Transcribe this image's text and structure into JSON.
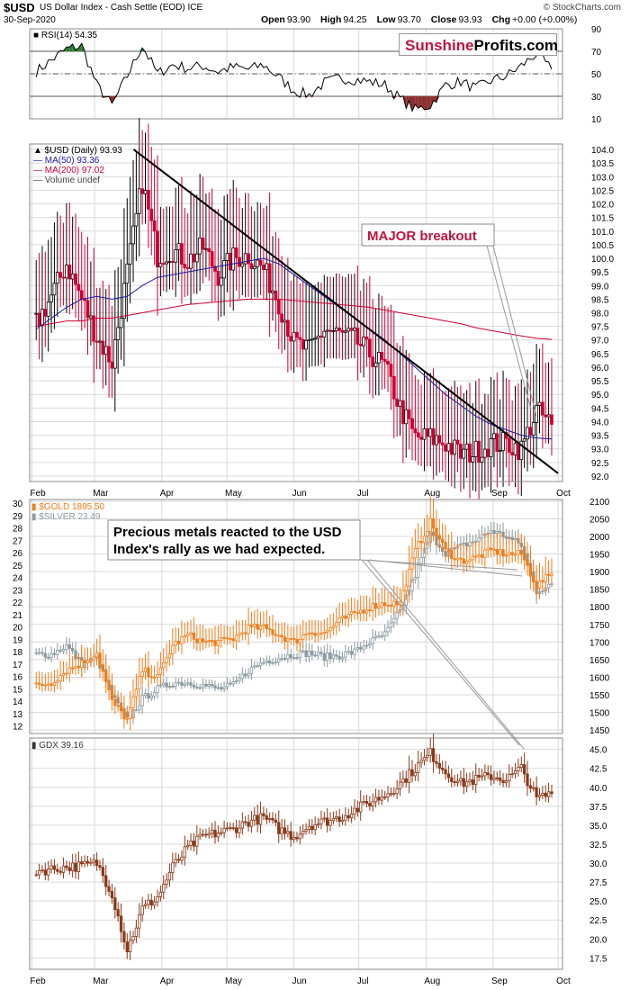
{
  "header": {
    "symbol": "$USD",
    "description": "US Dollar Index - Cash Settle (EOD) ICE",
    "date": "30-Sep-2020",
    "brand": "© StockCharts.com",
    "open_label": "Open",
    "open": "93.90",
    "high_label": "High",
    "high": "94.25",
    "low_label": "Low",
    "low": "93.70",
    "close_label": "Close",
    "close": "93.93",
    "chg_label": "Chg",
    "chg": "+0.00 (+0.00%)"
  },
  "logo": {
    "part1": "Sunshine",
    "part2": "Profits.com"
  },
  "colors": {
    "up": "#000000",
    "down": "#cc0033",
    "ma50": "#1a1aa0",
    "ma200": "#cc0033",
    "gold": "#f07d1a",
    "silver": "#8a9aa0",
    "gdx": "#8b3a1a",
    "rsi_over": "#2e7d32",
    "rsi_under": "#8b3030",
    "trend": "#000000"
  },
  "x_months": [
    "Feb",
    "Mar",
    "Apr",
    "May",
    "Jun",
    "Jul",
    "Aug",
    "Sep",
    "Oct"
  ],
  "chart_data": [
    {
      "type": "line",
      "title": "RSI(14) 54.35",
      "legend": [
        "RSI(14) 54.35"
      ],
      "y_ticks": [
        90,
        70,
        50,
        30,
        10
      ],
      "ylim": [
        10,
        90
      ],
      "levels": [
        70,
        50,
        30
      ],
      "x": [
        "2020-02-03",
        "2020-02-10",
        "2020-02-17",
        "2020-02-24",
        "2020-03-02",
        "2020-03-09",
        "2020-03-16",
        "2020-03-23",
        "2020-03-30",
        "2020-04-06",
        "2020-04-13",
        "2020-04-20",
        "2020-04-27",
        "2020-05-04",
        "2020-05-11",
        "2020-05-18",
        "2020-05-25",
        "2020-06-01",
        "2020-06-08",
        "2020-06-15",
        "2020-06-22",
        "2020-06-29",
        "2020-07-06",
        "2020-07-13",
        "2020-07-20",
        "2020-07-27",
        "2020-08-03",
        "2020-08-10",
        "2020-08-17",
        "2020-08-24",
        "2020-08-31",
        "2020-09-07",
        "2020-09-14",
        "2020-09-21",
        "2020-09-28"
      ],
      "values": [
        52,
        62,
        72,
        75,
        40,
        22,
        48,
        75,
        50,
        58,
        55,
        57,
        52,
        56,
        54,
        58,
        47,
        35,
        31,
        42,
        46,
        45,
        43,
        40,
        28,
        18,
        22,
        40,
        43,
        37,
        44,
        48,
        57,
        68,
        54
      ]
    },
    {
      "type": "candlestick",
      "title": "$USD (Daily) 93.93",
      "legend": [
        "$USD (Daily) 93.93",
        "MA(50) 93.36",
        "MA(200) 97.02",
        "Volume undef"
      ],
      "y_ticks": [
        104.0,
        103.5,
        103.0,
        102.5,
        102.0,
        101.5,
        101.0,
        100.5,
        100.0,
        99.5,
        99.0,
        98.5,
        98.0,
        97.5,
        97.0,
        96.5,
        96.0,
        95.5,
        95.0,
        94.5,
        94.0,
        93.5,
        93.0,
        92.5,
        92.0
      ],
      "ylim": [
        91.8,
        104.2
      ],
      "x": [
        "2020-02-03",
        "2020-02-10",
        "2020-02-17",
        "2020-02-24",
        "2020-03-02",
        "2020-03-09",
        "2020-03-16",
        "2020-03-23",
        "2020-03-30",
        "2020-04-06",
        "2020-04-13",
        "2020-04-20",
        "2020-04-27",
        "2020-05-04",
        "2020-05-11",
        "2020-05-18",
        "2020-05-25",
        "2020-06-01",
        "2020-06-08",
        "2020-06-15",
        "2020-06-22",
        "2020-06-29",
        "2020-07-06",
        "2020-07-13",
        "2020-07-20",
        "2020-07-27",
        "2020-08-03",
        "2020-08-10",
        "2020-08-17",
        "2020-08-24",
        "2020-08-31",
        "2020-09-07",
        "2020-09-14",
        "2020-09-21",
        "2020-09-28"
      ],
      "values": [
        97.6,
        98.6,
        99.8,
        98.5,
        97.1,
        96.2,
        99.5,
        102.8,
        100.1,
        100.3,
        99.9,
        100.4,
        99.4,
        100.0,
        100.1,
        99.6,
        98.4,
        96.9,
        96.6,
        97.4,
        97.2,
        97.0,
        96.5,
        96.0,
        94.5,
        93.4,
        93.4,
        93.2,
        92.8,
        92.9,
        93.2,
        93.2,
        93.0,
        94.4,
        93.9
      ],
      "ma50": [
        97.4,
        97.8,
        98.2,
        98.5,
        98.6,
        98.5,
        98.6,
        99.0,
        99.3,
        99.4,
        99.5,
        99.6,
        99.7,
        99.8,
        99.9,
        100.0,
        99.8,
        99.4,
        99.0,
        98.6,
        98.2,
        97.8,
        97.4,
        97.0,
        96.5,
        96.0,
        95.5,
        95.0,
        94.6,
        94.2,
        93.9,
        93.7,
        93.5,
        93.4,
        93.36
      ],
      "ma200": [
        97.5,
        97.6,
        97.7,
        97.7,
        97.8,
        97.8,
        97.9,
        98.0,
        98.1,
        98.2,
        98.3,
        98.35,
        98.4,
        98.45,
        98.5,
        98.5,
        98.5,
        98.45,
        98.4,
        98.35,
        98.3,
        98.25,
        98.2,
        98.1,
        98.0,
        97.9,
        97.8,
        97.7,
        97.6,
        97.45,
        97.35,
        97.25,
        97.15,
        97.06,
        97.02
      ],
      "trendline": {
        "from": [
          "2020-03-19",
          104.0
        ],
        "to": [
          "2020-10-01",
          92.1
        ]
      },
      "annotation": "MAJOR breakout"
    },
    {
      "type": "candlestick",
      "title": "$GOLD 1895.50",
      "legend": [
        "$GOLD 1895.50",
        "$SILVER 23.49"
      ],
      "y_ticks_left": [
        30,
        29,
        28,
        27,
        26,
        25,
        24,
        23,
        22,
        21,
        20,
        19,
        18,
        17,
        16,
        15,
        14,
        13,
        12
      ],
      "y_ticks_right": [
        2100,
        2050,
        2000,
        1950,
        1900,
        1850,
        1800,
        1750,
        1700,
        1650,
        1600,
        1550,
        1500,
        1450
      ],
      "ylim_left": [
        11.4,
        30.3
      ],
      "ylim_right": [
        1440,
        2105
      ],
      "x": [
        "2020-02-03",
        "2020-02-10",
        "2020-02-17",
        "2020-02-24",
        "2020-03-02",
        "2020-03-09",
        "2020-03-16",
        "2020-03-23",
        "2020-03-30",
        "2020-04-06",
        "2020-04-13",
        "2020-04-20",
        "2020-04-27",
        "2020-05-04",
        "2020-05-11",
        "2020-05-18",
        "2020-05-25",
        "2020-06-01",
        "2020-06-08",
        "2020-06-15",
        "2020-06-22",
        "2020-06-29",
        "2020-07-06",
        "2020-07-13",
        "2020-07-20",
        "2020-07-27",
        "2020-08-03",
        "2020-08-10",
        "2020-08-17",
        "2020-08-24",
        "2020-08-31",
        "2020-09-07",
        "2020-09-14",
        "2020-09-21",
        "2020-09-28"
      ],
      "series": [
        {
          "name": "$GOLD 1895.50",
          "axis": "right",
          "values": [
            1575,
            1585,
            1620,
            1640,
            1670,
            1530,
            1480,
            1620,
            1600,
            1690,
            1720,
            1700,
            1700,
            1710,
            1740,
            1740,
            1720,
            1700,
            1730,
            1725,
            1760,
            1780,
            1800,
            1810,
            1810,
            1960,
            2040,
            1960,
            1930,
            1940,
            1960,
            1950,
            1950,
            1860,
            1895.5
          ]
        },
        {
          "name": "$SILVER 23.49",
          "axis": "left",
          "values": [
            17.8,
            17.8,
            18.5,
            17.0,
            17.5,
            14.5,
            12.5,
            14.2,
            15.0,
            15.5,
            15.5,
            15.3,
            15.0,
            15.3,
            16.5,
            17.2,
            17.5,
            17.8,
            17.9,
            17.6,
            17.7,
            18.0,
            18.8,
            19.4,
            21.3,
            24.2,
            27.5,
            26.0,
            26.5,
            27.0,
            27.8,
            27.3,
            26.6,
            22.9,
            23.49
          ]
        }
      ],
      "annotation": "Precious metals reacted to the USD Index's rally as we had expected."
    },
    {
      "type": "candlestick",
      "title": "GDX 39.16",
      "legend": [
        "GDX 39.16"
      ],
      "y_ticks": [
        45.0,
        42.5,
        40.0,
        37.5,
        35.0,
        32.5,
        30.0,
        27.5,
        25.0,
        22.5,
        20.0,
        17.5
      ],
      "ylim": [
        16.0,
        46.5
      ],
      "x": [
        "2020-02-03",
        "2020-02-10",
        "2020-02-17",
        "2020-02-24",
        "2020-03-02",
        "2020-03-09",
        "2020-03-16",
        "2020-03-23",
        "2020-03-30",
        "2020-04-06",
        "2020-04-13",
        "2020-04-20",
        "2020-04-27",
        "2020-05-04",
        "2020-05-11",
        "2020-05-18",
        "2020-05-25",
        "2020-06-01",
        "2020-06-08",
        "2020-06-15",
        "2020-06-22",
        "2020-06-29",
        "2020-07-06",
        "2020-07-13",
        "2020-07-20",
        "2020-07-27",
        "2020-08-03",
        "2020-08-10",
        "2020-08-17",
        "2020-08-24",
        "2020-08-31",
        "2020-09-07",
        "2020-09-14",
        "2020-09-21",
        "2020-09-28"
      ],
      "values": [
        29.0,
        29.2,
        29.5,
        29.6,
        30.0,
        26.0,
        18.5,
        24.0,
        25.5,
        29.5,
        32.0,
        33.5,
        34.0,
        34.5,
        35.5,
        36.0,
        34.5,
        33.5,
        35.0,
        35.5,
        36.0,
        37.0,
        38.0,
        39.0,
        40.5,
        42.5,
        44.5,
        42.0,
        40.5,
        41.0,
        41.5,
        41.0,
        42.5,
        38.5,
        39.16
      ]
    }
  ]
}
